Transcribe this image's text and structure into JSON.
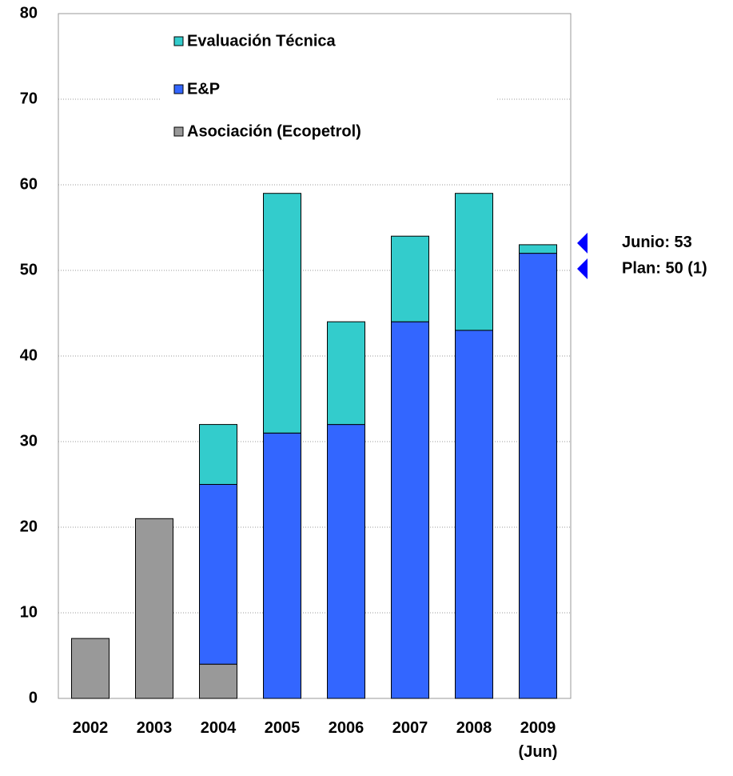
{
  "chart_data": {
    "type": "stacked_bar",
    "categories": [
      "2002",
      "2003",
      "2004",
      "2005",
      "2006",
      "2007",
      "2008",
      "2009 (Jun)"
    ],
    "series": [
      {
        "name": "Asociación (Ecopetrol)",
        "color": "#999999",
        "values": [
          7,
          21,
          4,
          0,
          0,
          0,
          0,
          0
        ]
      },
      {
        "name": "E&P",
        "color": "#3366ff",
        "values": [
          0,
          0,
          21,
          31,
          32,
          44,
          43,
          52
        ]
      },
      {
        "name": "Evaluación Técnica",
        "color": "#33cccc",
        "values": [
          0,
          0,
          7,
          28,
          12,
          10,
          16,
          1
        ]
      }
    ],
    "ylim": [
      0,
      80
    ],
    "yticks": [
      0,
      10,
      20,
      30,
      40,
      50,
      60,
      70,
      80
    ],
    "grid": true,
    "annotations": [
      {
        "text": "Junio: 53",
        "value": 53,
        "color": "#0000ff"
      },
      {
        "text": "Plan: 50 (1)",
        "value": 50,
        "color": "#0000ff"
      }
    ]
  }
}
